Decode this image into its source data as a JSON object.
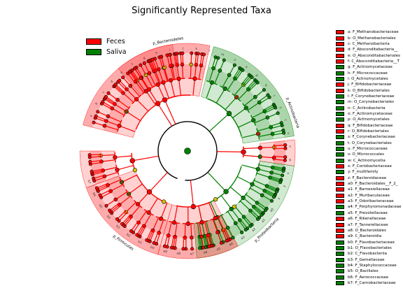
{
  "chart_data": {
    "type": "cladogram",
    "title": "Significantly Represented Taxa",
    "groups": [
      {
        "name": "Feces",
        "color": "#ff0000"
      },
      {
        "name": "Saliva",
        "color": "#008000"
      }
    ],
    "rings": [
      "domain",
      "phylum",
      "class",
      "order",
      "family",
      "genus"
    ],
    "clade_labels": [
      {
        "text": "p_Bacteroidetes",
        "group": "Feces"
      },
      {
        "text": "p_Actinobacteria",
        "group": "Saliva"
      },
      {
        "text": "p_Proteobacteria",
        "group": "Saliva"
      },
      {
        "text": "p_Firmicutes",
        "group": "Feces"
      }
    ],
    "taxa": [
      {
        "key": "a",
        "name": "F_Methanobacteriaceae",
        "group": "Feces"
      },
      {
        "key": "b",
        "name": "O_Methanobacteriales",
        "group": "Feces"
      },
      {
        "key": "c",
        "name": "C_Methanobacteria",
        "group": "Feces"
      },
      {
        "key": "d",
        "name": "F_Absconditabacteria__",
        "group": "Feces"
      },
      {
        "key": "e",
        "name": "O_Absconditabacteriales",
        "group": "Feces"
      },
      {
        "key": "f",
        "name": "C_Absconditabacteria__T",
        "group": "Feces"
      },
      {
        "key": "g",
        "name": "F_Actinomycetaceae",
        "group": "Saliva"
      },
      {
        "key": "h",
        "name": "F_Micrococcaceae",
        "group": "Saliva"
      },
      {
        "key": "i",
        "name": "O_Actinomycetales",
        "group": "Saliva"
      },
      {
        "key": "j",
        "name": "F_Bifidobacteriaceae",
        "group": "Feces"
      },
      {
        "key": "k",
        "name": "O_Bifidobacteriales",
        "group": "Feces"
      },
      {
        "key": "l",
        "name": "F_Corynebacteriaceae",
        "group": "Saliva"
      },
      {
        "key": "m",
        "name": "O_Corynebacteriales",
        "group": "Saliva"
      },
      {
        "key": "n",
        "name": "C_Actinobacteria",
        "group": "Saliva"
      },
      {
        "key": "o",
        "name": "F_Actinomycetaceae",
        "group": "Saliva"
      },
      {
        "key": "p",
        "name": "O_Actinomycetales",
        "group": "Saliva"
      },
      {
        "key": "q",
        "name": "F_Bifidobacteriaceae",
        "group": "Feces"
      },
      {
        "key": "r",
        "name": "O_Bifidobacteriales",
        "group": "Feces"
      },
      {
        "key": "s",
        "name": "F_Corynebacteriaceae",
        "group": "Saliva"
      },
      {
        "key": "t",
        "name": "O_Corynebacteriales",
        "group": "Saliva"
      },
      {
        "key": "u",
        "name": "F_Micrococcaceae",
        "group": "Saliva"
      },
      {
        "key": "v",
        "name": "O_Micrococcales",
        "group": "Saliva"
      },
      {
        "key": "w",
        "name": "C_Actinomycetia",
        "group": "Saliva"
      },
      {
        "key": "x",
        "name": "F_Coriobacteriaceae",
        "group": "Feces"
      },
      {
        "key": "y",
        "name": "F_multifamily",
        "group": "Saliva"
      },
      {
        "key": "z",
        "name": "F_Bacteroidaceae",
        "group": "Feces"
      },
      {
        "key": "a0",
        "name": "F_Bacteroidales__F_2_",
        "group": "Feces"
      },
      {
        "key": "a1",
        "name": "F_Barnesiellaceae",
        "group": "Feces"
      },
      {
        "key": "a2",
        "name": "F_Muribaculaceae",
        "group": "Feces"
      },
      {
        "key": "a3",
        "name": "F_Odoribacteraceae",
        "group": "Feces"
      },
      {
        "key": "a4",
        "name": "F_Porphyromonadaceae",
        "group": "Saliva"
      },
      {
        "key": "a5",
        "name": "F_Prevotellaceae",
        "group": "Saliva"
      },
      {
        "key": "a6",
        "name": "F_Rikenellaceae",
        "group": "Feces"
      },
      {
        "key": "a7",
        "name": "F_Tannerellaceae",
        "group": "Feces"
      },
      {
        "key": "a8",
        "name": "O_Bacteroidales",
        "group": "Feces"
      },
      {
        "key": "a9",
        "name": "C_Bacteroidia",
        "group": "Feces"
      },
      {
        "key": "b0",
        "name": "F_Flavobacteriaceae",
        "group": "Saliva"
      },
      {
        "key": "b1",
        "name": "O_Flavobacteriales",
        "group": "Saliva"
      },
      {
        "key": "b2",
        "name": "C_Flavobacteriia",
        "group": "Saliva"
      },
      {
        "key": "b3",
        "name": "F_Gemellaceae",
        "group": "Saliva"
      },
      {
        "key": "b4",
        "name": "F_Staphylococcaceae",
        "group": "Saliva"
      },
      {
        "key": "b5",
        "name": "O_Bacillales",
        "group": "Saliva"
      },
      {
        "key": "b6",
        "name": "F_Aerococcaceae",
        "group": "Saliva"
      },
      {
        "key": "b7",
        "name": "F_Carnobacteriaceae",
        "group": "Saliva"
      }
    ]
  }
}
